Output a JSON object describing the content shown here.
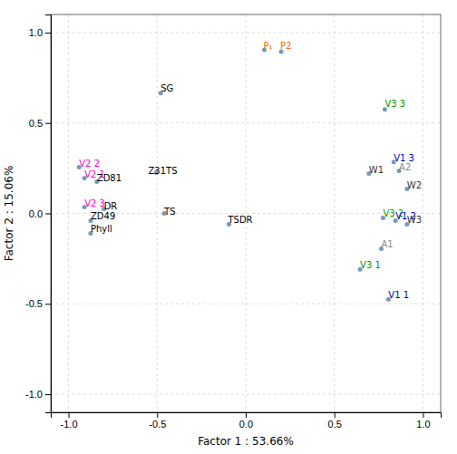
{
  "chart_data": {
    "type": "scatter",
    "xlabel": "Factor 1 : 53.66%",
    "ylabel": "Factor 2 : 15.06%",
    "xlim": [
      -1.1,
      1.1
    ],
    "ylim": [
      -1.1,
      1.1
    ],
    "xticks": [
      {
        "value": -1.0,
        "label": "-1.0"
      },
      -0.5,
      {
        "value": 0.0,
        "label": "0.0"
      },
      0.5,
      {
        "value": 1.0,
        "label": "1.0"
      }
    ],
    "yticks": [
      {
        "value": -1.0,
        "label": "-1.0"
      },
      -0.5,
      {
        "value": 0.0,
        "label": "0.0"
      },
      0.5,
      {
        "value": 1.0,
        "label": "1.0"
      }
    ],
    "grid": true,
    "color": "#7799BB",
    "x": [
      -0.48,
      -0.505,
      -0.46,
      -0.095,
      -0.8,
      -0.875,
      -0.875,
      -0.84,
      0.105,
      0.2,
      -0.94,
      -0.91,
      -0.91,
      0.785,
      0.645,
      0.775,
      0.835,
      0.845,
      0.805,
      0.695,
      0.91,
      0.91,
      0.865,
      0.765
    ],
    "values": [
      0.665,
      0.225,
      0.0,
      -0.06,
      0.025,
      -0.04,
      -0.11,
      0.175,
      0.905,
      0.895,
      0.255,
      0.195,
      0.035,
      0.575,
      -0.31,
      -0.025,
      0.285,
      -0.04,
      -0.475,
      0.22,
      0.135,
      -0.06,
      0.235,
      -0.195
    ],
    "annotations": [
      {
        "text": "SG",
        "x": -0.48,
        "y": 0.69,
        "color": "#000000"
      },
      {
        "text": "Z31",
        "x": -0.55,
        "y": 0.235,
        "color": "#000000"
      },
      {
        "text": "TS",
        "x": -0.45,
        "y": 0.235,
        "color": "#000000"
      },
      {
        "text": "TS",
        "x": -0.46,
        "y": 0.01,
        "color": "#000000"
      },
      {
        "text": "TSDR",
        "x": -0.1,
        "y": -0.04,
        "color": "#000000"
      },
      {
        "text": "DR",
        "x": -0.8,
        "y": 0.04,
        "color": "#000000"
      },
      {
        "text": "ZD49",
        "x": -0.875,
        "y": -0.02,
        "color": "#000000"
      },
      {
        "text": "Phyll",
        "x": -0.875,
        "y": -0.09,
        "color": "#000000"
      },
      {
        "text": "ZD81",
        "x": -0.84,
        "y": 0.195,
        "color": "#000000"
      },
      {
        "text": "P₁",
        "x": 0.1,
        "y": 0.925,
        "color": "#FF6600"
      },
      {
        "text": "P2",
        "x": 0.195,
        "y": 0.925,
        "color": "#FF6600"
      },
      {
        "text": "V2 2",
        "x": -0.94,
        "y": 0.275,
        "color": "#FF00CC"
      },
      {
        "text": "V2 1",
        "x": -0.91,
        "y": 0.215,
        "color": "#FF00CC"
      },
      {
        "text": "V2 3",
        "x": -0.91,
        "y": 0.055,
        "color": "#FF00CC"
      },
      {
        "text": "V3 3",
        "x": 0.785,
        "y": 0.605,
        "color": "#009900"
      },
      {
        "text": "V3 1",
        "x": 0.645,
        "y": -0.29,
        "color": "#009900"
      },
      {
        "text": "V3 2",
        "x": 0.775,
        "y": -0.005,
        "color": "#009900"
      },
      {
        "text": "V1 3",
        "x": 0.835,
        "y": 0.305,
        "color": "#0000BB"
      },
      {
        "text": "V1 2",
        "x": 0.845,
        "y": -0.02,
        "color": "#0000BB"
      },
      {
        "text": "V1 1",
        "x": 0.805,
        "y": -0.455,
        "color": "#0000BB"
      },
      {
        "text": "W1",
        "x": 0.695,
        "y": 0.24,
        "color": "#333333"
      },
      {
        "text": "W2",
        "x": 0.91,
        "y": 0.155,
        "color": "#333333"
      },
      {
        "text": "W3",
        "x": 0.91,
        "y": -0.04,
        "color": "#333333"
      },
      {
        "text": "A2",
        "x": 0.865,
        "y": 0.255,
        "color": "#888888"
      },
      {
        "text": "A1",
        "x": 0.765,
        "y": -0.175,
        "color": "#888888"
      }
    ]
  }
}
